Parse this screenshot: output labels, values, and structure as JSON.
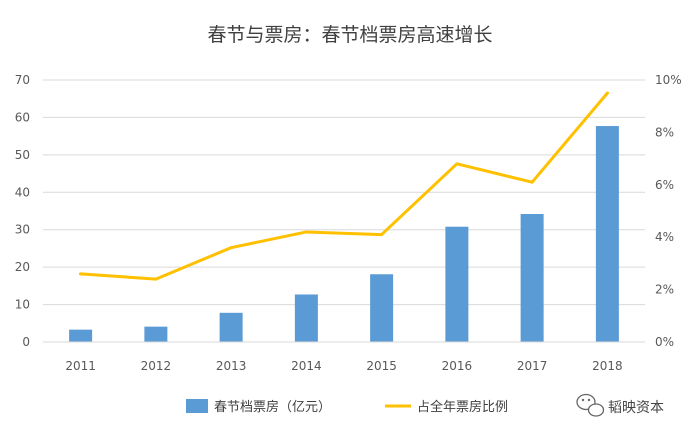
{
  "chart_data": {
    "type": "bar",
    "title": "春节与票房：春节档票房高速增长",
    "categories": [
      "2011",
      "2012",
      "2013",
      "2014",
      "2015",
      "2016",
      "2017",
      "2018"
    ],
    "series": [
      {
        "name": "春节档票房（亿元）",
        "type": "bar",
        "axis": "left",
        "color": "#5B9BD5",
        "values": [
          3.3,
          4.1,
          7.8,
          12.7,
          18.1,
          30.8,
          34.2,
          57.7
        ]
      },
      {
        "name": "占全年票房比例",
        "type": "line",
        "axis": "right",
        "color": "#FFC000",
        "values": [
          0.026,
          0.024,
          0.036,
          0.042,
          0.041,
          0.068,
          0.061,
          0.095
        ]
      }
    ],
    "ylim_left": [
      0,
      70
    ],
    "yticks_left": [
      "0",
      "10",
      "20",
      "30",
      "40",
      "50",
      "60",
      "70"
    ],
    "ylim_right": [
      0,
      0.1
    ],
    "yticks_right": [
      "0%",
      "2%",
      "4%",
      "6%",
      "8%",
      "10%"
    ],
    "grid": true,
    "legend_position": "bottom"
  },
  "watermark": {
    "text": "韬映资本",
    "icon": "wechat-icon"
  }
}
